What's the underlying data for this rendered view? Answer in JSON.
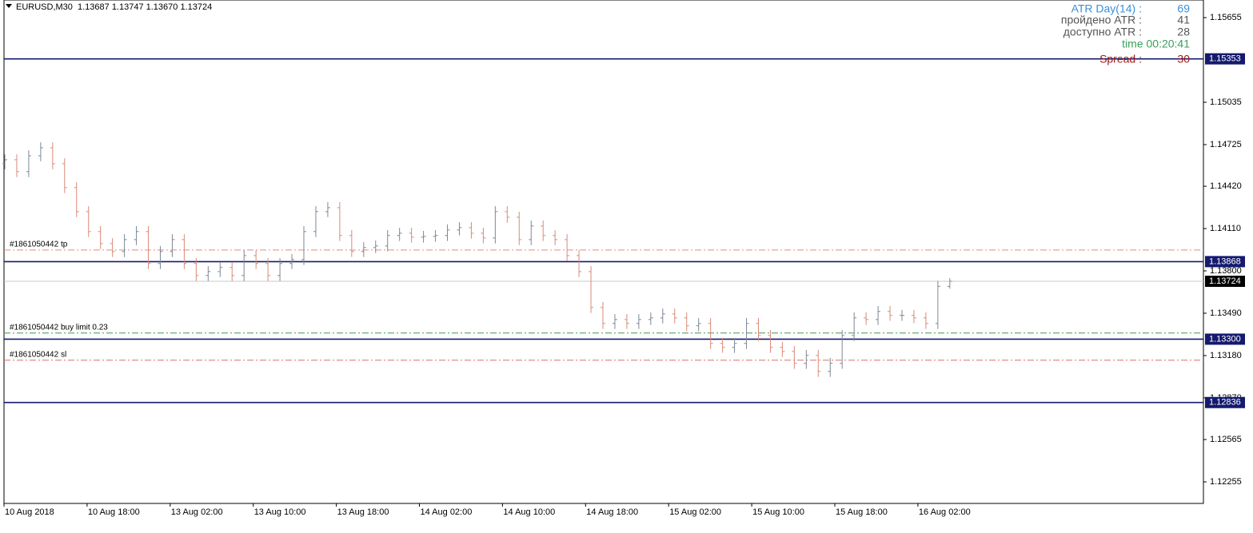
{
  "chart_data": {
    "type": "ohlc",
    "symbol": "EURUSD,M30",
    "quote": "1.13687 1.13747 1.13670 1.13724",
    "open": [
      1.14585,
      1.14614,
      1.14527,
      1.14643,
      1.14702,
      1.14585,
      1.1441,
      1.14234,
      1.14088,
      1.14,
      1.13942,
      1.14029,
      1.14088,
      1.13854,
      1.13942,
      1.14029,
      1.13854,
      1.13766,
      1.13795,
      1.13825,
      1.13766,
      1.13912,
      1.13854,
      1.13766,
      1.13854,
      1.13883,
      1.14088,
      1.14234,
      1.14263,
      1.14059,
      1.13942,
      1.13971,
      1.13983,
      1.14059,
      1.14076,
      1.14047,
      1.14053,
      1.14059,
      1.141,
      1.14117,
      1.14076,
      1.14041,
      1.14234,
      1.14193,
      1.14029,
      1.14129,
      1.14059,
      1.14029,
      1.13912,
      1.13795,
      1.13532,
      1.13415,
      1.13444,
      1.13415,
      1.13444,
      1.13456,
      1.13485,
      1.13456,
      1.13398,
      1.13415,
      1.13269,
      1.1324,
      1.13269,
      1.13415,
      1.13327,
      1.1324,
      1.1321,
      1.13123,
      1.13181,
      1.13064,
      1.13123,
      1.13327,
      1.13456,
      1.13444,
      1.13503,
      1.13474,
      1.13474,
      1.13456,
      1.13415,
      1.13687
    ],
    "high": [
      1.14654,
      1.14654,
      1.14683,
      1.14742,
      1.14742,
      1.14625,
      1.1445,
      1.14274,
      1.14128,
      1.1404,
      1.14069,
      1.14128,
      1.14128,
      1.13982,
      1.14069,
      1.14069,
      1.13894,
      1.13835,
      1.13865,
      1.13865,
      1.13952,
      1.13952,
      1.13894,
      1.13894,
      1.13923,
      1.14128,
      1.14274,
      1.14303,
      1.14303,
      1.14099,
      1.14011,
      1.14023,
      1.14099,
      1.14116,
      1.14116,
      1.14093,
      1.14099,
      1.1414,
      1.14157,
      1.14157,
      1.14116,
      1.14274,
      1.14274,
      1.14233,
      1.14169,
      1.14169,
      1.14099,
      1.14069,
      1.13952,
      1.13835,
      1.13572,
      1.13484,
      1.13484,
      1.13484,
      1.13496,
      1.13525,
      1.13525,
      1.13496,
      1.13455,
      1.13455,
      1.13309,
      1.13309,
      1.13455,
      1.13455,
      1.13367,
      1.1328,
      1.1325,
      1.13221,
      1.13221,
      1.13163,
      1.13367,
      1.13496,
      1.13496,
      1.13543,
      1.13543,
      1.13514,
      1.13514,
      1.13496,
      1.13727,
      1.13747
    ],
    "low": [
      1.14545,
      1.14487,
      1.14487,
      1.14603,
      1.14545,
      1.1437,
      1.14194,
      1.14048,
      1.1396,
      1.13902,
      1.13902,
      1.13989,
      1.13814,
      1.13814,
      1.13902,
      1.13814,
      1.13726,
      1.13726,
      1.13755,
      1.13726,
      1.13726,
      1.13814,
      1.13726,
      1.13726,
      1.13814,
      1.13843,
      1.14048,
      1.14194,
      1.14019,
      1.13902,
      1.13902,
      1.13931,
      1.13943,
      1.14019,
      1.14007,
      1.14007,
      1.14013,
      1.14019,
      1.1406,
      1.14036,
      1.14001,
      1.14001,
      1.14153,
      1.13989,
      1.13989,
      1.14019,
      1.13989,
      1.13872,
      1.13755,
      1.13492,
      1.13375,
      1.13375,
      1.13375,
      1.13375,
      1.13404,
      1.13416,
      1.13416,
      1.13358,
      1.13358,
      1.13229,
      1.132,
      1.132,
      1.13229,
      1.13287,
      1.132,
      1.1317,
      1.13083,
      1.13083,
      1.13024,
      1.13024,
      1.13083,
      1.13287,
      1.13404,
      1.13404,
      1.13434,
      1.13434,
      1.13416,
      1.13375,
      1.13375,
      1.1367
    ],
    "close": [
      1.14614,
      1.14527,
      1.14643,
      1.14702,
      1.14585,
      1.1441,
      1.14234,
      1.14088,
      1.14,
      1.13942,
      1.14029,
      1.14088,
      1.13854,
      1.13942,
      1.14029,
      1.13854,
      1.13766,
      1.13795,
      1.13825,
      1.13766,
      1.13912,
      1.13854,
      1.13766,
      1.13854,
      1.13883,
      1.14088,
      1.14234,
      1.14263,
      1.14059,
      1.13942,
      1.13971,
      1.13983,
      1.14059,
      1.14076,
      1.14047,
      1.14053,
      1.14059,
      1.141,
      1.14117,
      1.14076,
      1.14041,
      1.14234,
      1.14193,
      1.14029,
      1.14129,
      1.14059,
      1.14029,
      1.13912,
      1.13795,
      1.13532,
      1.13415,
      1.13444,
      1.13415,
      1.13444,
      1.13456,
      1.13485,
      1.13456,
      1.13398,
      1.13415,
      1.13269,
      1.1324,
      1.13269,
      1.13415,
      1.13327,
      1.1324,
      1.1321,
      1.13123,
      1.13181,
      1.13064,
      1.13123,
      1.13327,
      1.13456,
      1.13444,
      1.13503,
      1.13474,
      1.13474,
      1.13456,
      1.13415,
      1.13687,
      1.13724
    ],
    "up_color": "#7d8796",
    "down_color": "#d98a78",
    "x_labels": [
      "10 Aug 2018",
      "10 Aug 18:00",
      "13 Aug 02:00",
      "13 Aug 10:00",
      "13 Aug 18:00",
      "14 Aug 02:00",
      "14 Aug 10:00",
      "14 Aug 18:00",
      "15 Aug 02:00",
      "15 Aug 10:00",
      "15 Aug 18:00",
      "16 Aug 02:00"
    ],
    "ylim": [
      1.12097,
      1.15784
    ],
    "yticks": [
      1.15655,
      1.15035,
      1.14725,
      {
        "value": 1.1442,
        "label": "1.14420"
      },
      {
        "value": 1.1411,
        "label": "1.14110"
      },
      {
        "value": 1.138,
        "label": "1.13800"
      },
      {
        "value": 1.1349,
        "label": "1.13490"
      },
      {
        "value": 1.1318,
        "label": "1.13180"
      },
      {
        "value": 1.1287,
        "label": "1.12870"
      },
      1.12565,
      1.12255
    ],
    "levels": [
      1.15353,
      1.13868,
      {
        "value": 1.133,
        "label": "1.13300"
      },
      1.12836
    ],
    "level_color": "#141a6e",
    "current_price": 1.13724,
    "orders": [
      {
        "label": "#1861050442 tp",
        "price": 1.13953,
        "color": "#e0907c"
      },
      {
        "label": "#1861050442 buy limit 0.23",
        "price": 1.13345,
        "color": "#3f9a45"
      },
      {
        "label": "#1861050442 sl",
        "price": 1.13146,
        "color": "#d9735f"
      }
    ],
    "info": [
      {
        "label": "ATR Day(14) :",
        "value": 69,
        "color": "#3b8fd8"
      },
      {
        "label": "пройдено ATR :",
        "value": 41,
        "color": "#555555"
      },
      {
        "label": "доступно ATR :",
        "value": 28,
        "color": "#555555"
      },
      {
        "label": "time 00:20:41",
        "color": "#3aa05a"
      },
      {
        "label": "Spread :",
        "value": 30,
        "color": "#a01a1a"
      }
    ]
  }
}
